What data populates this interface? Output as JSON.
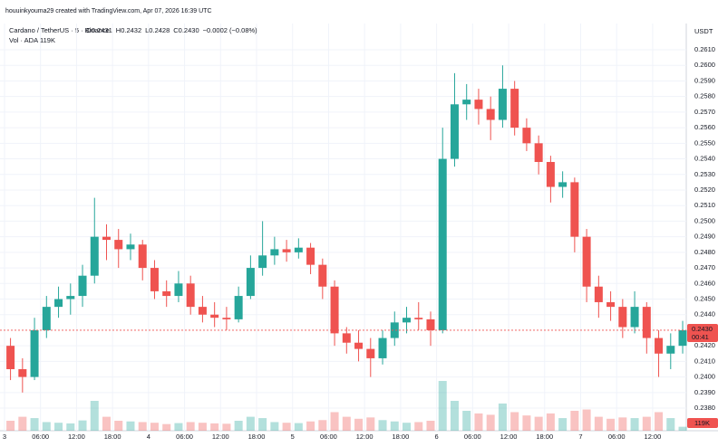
{
  "watermark": "houuinkyouma29 created with TradingView.com, Apr 07, 2026 16:39 UTC",
  "chart_data": {
    "type": "candlestick",
    "title": "Cardano / TetherUS · 5 · Binance",
    "ohlc_legend": [
      "O0.2431",
      "H0.2432",
      "L0.2428",
      "C0.2430",
      "−0.0002 (−0.08%)"
    ],
    "volume_title": "Vol · ADA",
    "volume_label": "119K",
    "axis_unit": "USDT",
    "up_color": "#26a69a",
    "down_color": "#ef5350",
    "grid": true,
    "last_price": {
      "value": 0.243,
      "label": "0.2430"
    },
    "countdown": "00:41",
    "xlim": [
      -0.75,
      113.6
    ],
    "xticks": [
      {
        "value": 0,
        "label": "3"
      },
      {
        "value": 6,
        "label": "06:00"
      },
      {
        "value": 12,
        "label": "12:00"
      },
      {
        "value": 18,
        "label": "18:00"
      },
      {
        "value": 24,
        "label": "4"
      },
      {
        "value": 30,
        "label": "06:00"
      },
      {
        "value": 36,
        "label": "12:00"
      },
      {
        "value": 42,
        "label": "18:00"
      },
      {
        "value": 48,
        "label": "5"
      },
      {
        "value": 54,
        "label": "06:00"
      },
      {
        "value": 60,
        "label": "12:00"
      },
      {
        "value": 66,
        "label": "18:00"
      },
      {
        "value": 72,
        "label": "6"
      },
      {
        "value": 78,
        "label": "06:00"
      },
      {
        "value": 84,
        "label": "12:00"
      },
      {
        "value": 90,
        "label": "18:00"
      },
      {
        "value": 96,
        "label": "7"
      },
      {
        "value": 102,
        "label": "06:00"
      },
      {
        "value": 108,
        "label": "12:00"
      }
    ],
    "ylim": [
      0.23655,
      0.26257
    ],
    "yticks": [
      {
        "value": 0.238,
        "label": "0.2380"
      },
      {
        "value": 0.239,
        "label": "0.2390"
      },
      {
        "value": 0.24,
        "label": "0.2400"
      },
      {
        "value": 0.241,
        "label": "0.2410"
      },
      {
        "value": 0.242,
        "label": "0.2420"
      },
      {
        "value": 0.244,
        "label": "0.2440"
      },
      {
        "value": 0.245,
        "label": "0.2450"
      },
      {
        "value": 0.246,
        "label": "0.2460"
      },
      {
        "value": 0.247,
        "label": "0.2470"
      },
      {
        "value": 0.248,
        "label": "0.2480"
      },
      {
        "value": 0.249,
        "label": "0.2490"
      },
      {
        "value": 0.25,
        "label": "0.2500"
      },
      {
        "value": 0.251,
        "label": "0.2510"
      },
      {
        "value": 0.252,
        "label": "0.2520"
      },
      {
        "value": 0.253,
        "label": "0.2530"
      },
      {
        "value": 0.254,
        "label": "0.2540"
      },
      {
        "value": 0.255,
        "label": "0.2550"
      },
      {
        "value": 0.256,
        "label": "0.2560"
      },
      {
        "value": 0.257,
        "label": "0.2570"
      },
      {
        "value": 0.258,
        "label": "0.2580"
      },
      {
        "value": 0.259,
        "label": "0.2590"
      },
      {
        "value": 0.26,
        "label": "0.2600"
      },
      {
        "value": 0.261,
        "label": "0.2610"
      }
    ],
    "x": [
      1,
      3,
      5,
      7,
      9,
      11,
      13,
      15,
      17,
      19,
      21,
      23,
      25,
      27,
      29,
      31,
      33,
      35,
      37,
      39,
      41,
      43,
      45,
      47,
      49,
      51,
      53,
      55,
      57,
      59,
      61,
      63,
      65,
      67,
      69,
      71,
      73,
      75,
      77,
      79,
      81,
      83,
      85,
      87,
      89,
      91,
      93,
      95,
      97,
      99,
      101,
      103,
      105,
      107,
      109,
      111,
      113
    ],
    "candles": [
      [
        0.242,
        0.2425,
        0.2398,
        0.2405
      ],
      [
        0.2405,
        0.2412,
        0.239,
        0.24
      ],
      [
        0.24,
        0.2438,
        0.2398,
        0.243
      ],
      [
        0.243,
        0.2452,
        0.2425,
        0.2445
      ],
      [
        0.2445,
        0.2458,
        0.2438,
        0.245
      ],
      [
        0.245,
        0.246,
        0.244,
        0.2452
      ],
      [
        0.2452,
        0.2472,
        0.2445,
        0.2465
      ],
      [
        0.2465,
        0.2515,
        0.246,
        0.249
      ],
      [
        0.249,
        0.2498,
        0.2475,
        0.2488
      ],
      [
        0.2488,
        0.2495,
        0.247,
        0.2482
      ],
      [
        0.2482,
        0.2492,
        0.2475,
        0.2485
      ],
      [
        0.2485,
        0.2488,
        0.2462,
        0.247
      ],
      [
        0.247,
        0.2475,
        0.245,
        0.2455
      ],
      [
        0.2455,
        0.2462,
        0.2445,
        0.2452
      ],
      [
        0.2452,
        0.2468,
        0.2448,
        0.246
      ],
      [
        0.246,
        0.2465,
        0.244,
        0.2445
      ],
      [
        0.2445,
        0.2452,
        0.2435,
        0.244
      ],
      [
        0.244,
        0.2448,
        0.2432,
        0.2438
      ],
      [
        0.2438,
        0.2445,
        0.243,
        0.2437
      ],
      [
        0.2437,
        0.2458,
        0.2435,
        0.2452
      ],
      [
        0.2452,
        0.2478,
        0.245,
        0.247
      ],
      [
        0.247,
        0.25,
        0.2465,
        0.2478
      ],
      [
        0.2478,
        0.249,
        0.2472,
        0.2482
      ],
      [
        0.2482,
        0.2488,
        0.2474,
        0.248
      ],
      [
        0.248,
        0.2489,
        0.2476,
        0.2483
      ],
      [
        0.2483,
        0.2486,
        0.2466,
        0.2472
      ],
      [
        0.2472,
        0.2476,
        0.245,
        0.2458
      ],
      [
        0.2458,
        0.2462,
        0.242,
        0.2428
      ],
      [
        0.2428,
        0.2432,
        0.2415,
        0.2422
      ],
      [
        0.2422,
        0.243,
        0.241,
        0.2418
      ],
      [
        0.2418,
        0.2425,
        0.24,
        0.2412
      ],
      [
        0.2412,
        0.243,
        0.2408,
        0.2425
      ],
      [
        0.2425,
        0.2442,
        0.242,
        0.2435
      ],
      [
        0.2435,
        0.2445,
        0.2428,
        0.2438
      ],
      [
        0.2438,
        0.2448,
        0.243,
        0.2437
      ],
      [
        0.2437,
        0.2442,
        0.242,
        0.243
      ],
      [
        0.243,
        0.256,
        0.2428,
        0.254
      ],
      [
        0.254,
        0.2595,
        0.2535,
        0.2575
      ],
      [
        0.2575,
        0.2588,
        0.2565,
        0.2578
      ],
      [
        0.2578,
        0.2585,
        0.2562,
        0.2572
      ],
      [
        0.2572,
        0.258,
        0.2552,
        0.2565
      ],
      [
        0.2565,
        0.26,
        0.256,
        0.2585
      ],
      [
        0.2585,
        0.259,
        0.2555,
        0.256
      ],
      [
        0.256,
        0.2566,
        0.2545,
        0.255
      ],
      [
        0.255,
        0.2555,
        0.253,
        0.2538
      ],
      [
        0.2538,
        0.2542,
        0.2512,
        0.2522
      ],
      [
        0.2522,
        0.2532,
        0.2515,
        0.2525
      ],
      [
        0.2525,
        0.2528,
        0.248,
        0.249
      ],
      [
        0.249,
        0.2495,
        0.2448,
        0.2458
      ],
      [
        0.2458,
        0.2465,
        0.2438,
        0.2448
      ],
      [
        0.2448,
        0.2455,
        0.2436,
        0.2445
      ],
      [
        0.2445,
        0.245,
        0.2425,
        0.2432
      ],
      [
        0.2432,
        0.2455,
        0.2428,
        0.2445
      ],
      [
        0.2445,
        0.2448,
        0.2415,
        0.2425
      ],
      [
        0.2425,
        0.243,
        0.24,
        0.2415
      ],
      [
        0.2415,
        0.2428,
        0.2405,
        0.242
      ],
      [
        0.242,
        0.2436,
        0.2415,
        0.243
      ]
    ],
    "volume": [
      300,
      420,
      380,
      260,
      240,
      220,
      310,
      900,
      420,
      300,
      280,
      260,
      240,
      200,
      230,
      260,
      240,
      220,
      210,
      300,
      420,
      380,
      260,
      240,
      230,
      280,
      320,
      560,
      420,
      360,
      400,
      320,
      280,
      240,
      260,
      300,
      1500,
      900,
      600,
      520,
      480,
      820,
      560,
      460,
      420,
      520,
      380,
      600,
      640,
      420,
      360,
      400,
      380,
      420,
      560,
      380,
      119
    ]
  }
}
